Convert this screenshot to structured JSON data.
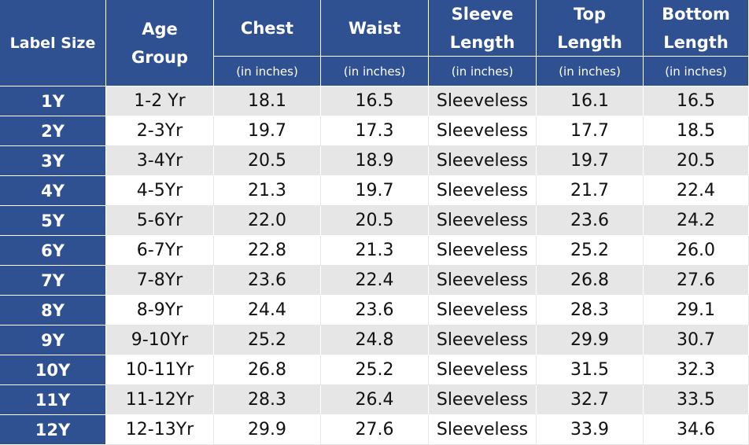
{
  "header": {
    "label_size": "Label Size",
    "age_group": "Age Group",
    "columns": [
      {
        "title": "Chest",
        "unit": "(in inches)"
      },
      {
        "title": "Waist",
        "unit": "(in inches)"
      },
      {
        "title": "Sleeve Length",
        "unit": "(in inches)"
      },
      {
        "title": "Top Length",
        "unit": "(in inches)"
      },
      {
        "title": "Bottom Length",
        "unit": "(in inches)"
      }
    ]
  },
  "table": {
    "rows": [
      [
        "1Y",
        "1-2 Yr",
        "18.1",
        "16.5",
        "Sleeveless",
        "16.1",
        "16.5"
      ],
      [
        "2Y",
        "2-3Yr",
        "19.7",
        "17.3",
        "Sleeveless",
        "17.7",
        "18.5"
      ],
      [
        "3Y",
        "3-4Yr",
        "20.5",
        "18.9",
        "Sleeveless",
        "19.7",
        "20.5"
      ],
      [
        "4Y",
        "4-5Yr",
        "21.3",
        "19.7",
        "Sleeveless",
        "21.7",
        "22.4"
      ],
      [
        "5Y",
        "5-6Yr",
        "22.0",
        "20.5",
        "Sleeveless",
        "23.6",
        "24.2"
      ],
      [
        "6Y",
        "6-7Yr",
        "22.8",
        "21.3",
        "Sleeveless",
        "25.2",
        "26.0"
      ],
      [
        "7Y",
        "7-8Yr",
        "23.6",
        "22.4",
        "Sleeveless",
        "26.8",
        "27.6"
      ],
      [
        "8Y",
        "8-9Yr",
        "24.4",
        "23.6",
        "Sleeveless",
        "28.3",
        "29.1"
      ],
      [
        "9Y",
        "9-10Yr",
        "25.2",
        "24.8",
        "Sleeveless",
        "29.9",
        "30.7"
      ],
      [
        "10Y",
        "10-11Yr",
        "26.8",
        "25.2",
        "Sleeveless",
        "31.5",
        "32.3"
      ],
      [
        "11Y",
        "11-12Yr",
        "28.3",
        "26.4",
        "Sleeveless",
        "32.7",
        "33.5"
      ],
      [
        "12Y",
        "12-13Yr",
        "29.9",
        "27.6",
        "Sleeveless",
        "33.9",
        "34.6"
      ]
    ]
  }
}
